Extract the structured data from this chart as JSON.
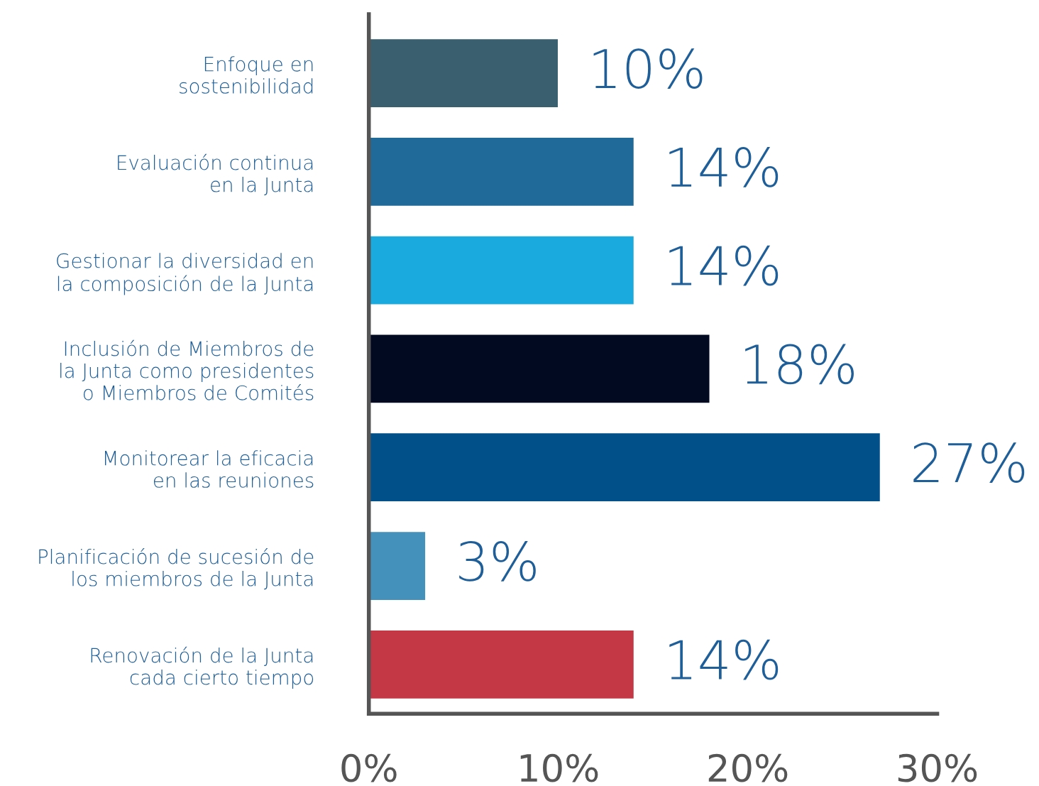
{
  "chart_data": {
    "type": "bar",
    "orientation": "horizontal",
    "categories": [
      "Enfoque en\nsostenibilidad",
      "Evaluación continua\nen la Junta",
      "Gestionar la diversidad en\nla composición de la Junta",
      "Inclusión de Miembros de\nla Junta como presidentes\no Miembros de Comités",
      "Monitorear la eficacia\nen las reuniones",
      "Planificación de sucesión de\nlos miembros de la Junta",
      "Renovación de la Junta\ncada cierto tiempo"
    ],
    "values": [
      10,
      14,
      14,
      18,
      27,
      3,
      14
    ],
    "colors": [
      "#3a5f6f",
      "#206a9a",
      "#1aaade",
      "#020a22",
      "#02508a",
      "#4491bb",
      "#c43744"
    ],
    "value_labels": [
      "10%",
      "14%",
      "14%",
      "18%",
      "27%",
      "3%",
      "14%"
    ],
    "xlim": [
      0,
      30
    ],
    "xticks": [
      {
        "value": 0,
        "label": "0%"
      },
      {
        "value": 10,
        "label": "10%"
      },
      {
        "value": 20,
        "label": "20%"
      },
      {
        "value": 30,
        "label": "30%"
      }
    ],
    "grid": false,
    "legend": false
  }
}
